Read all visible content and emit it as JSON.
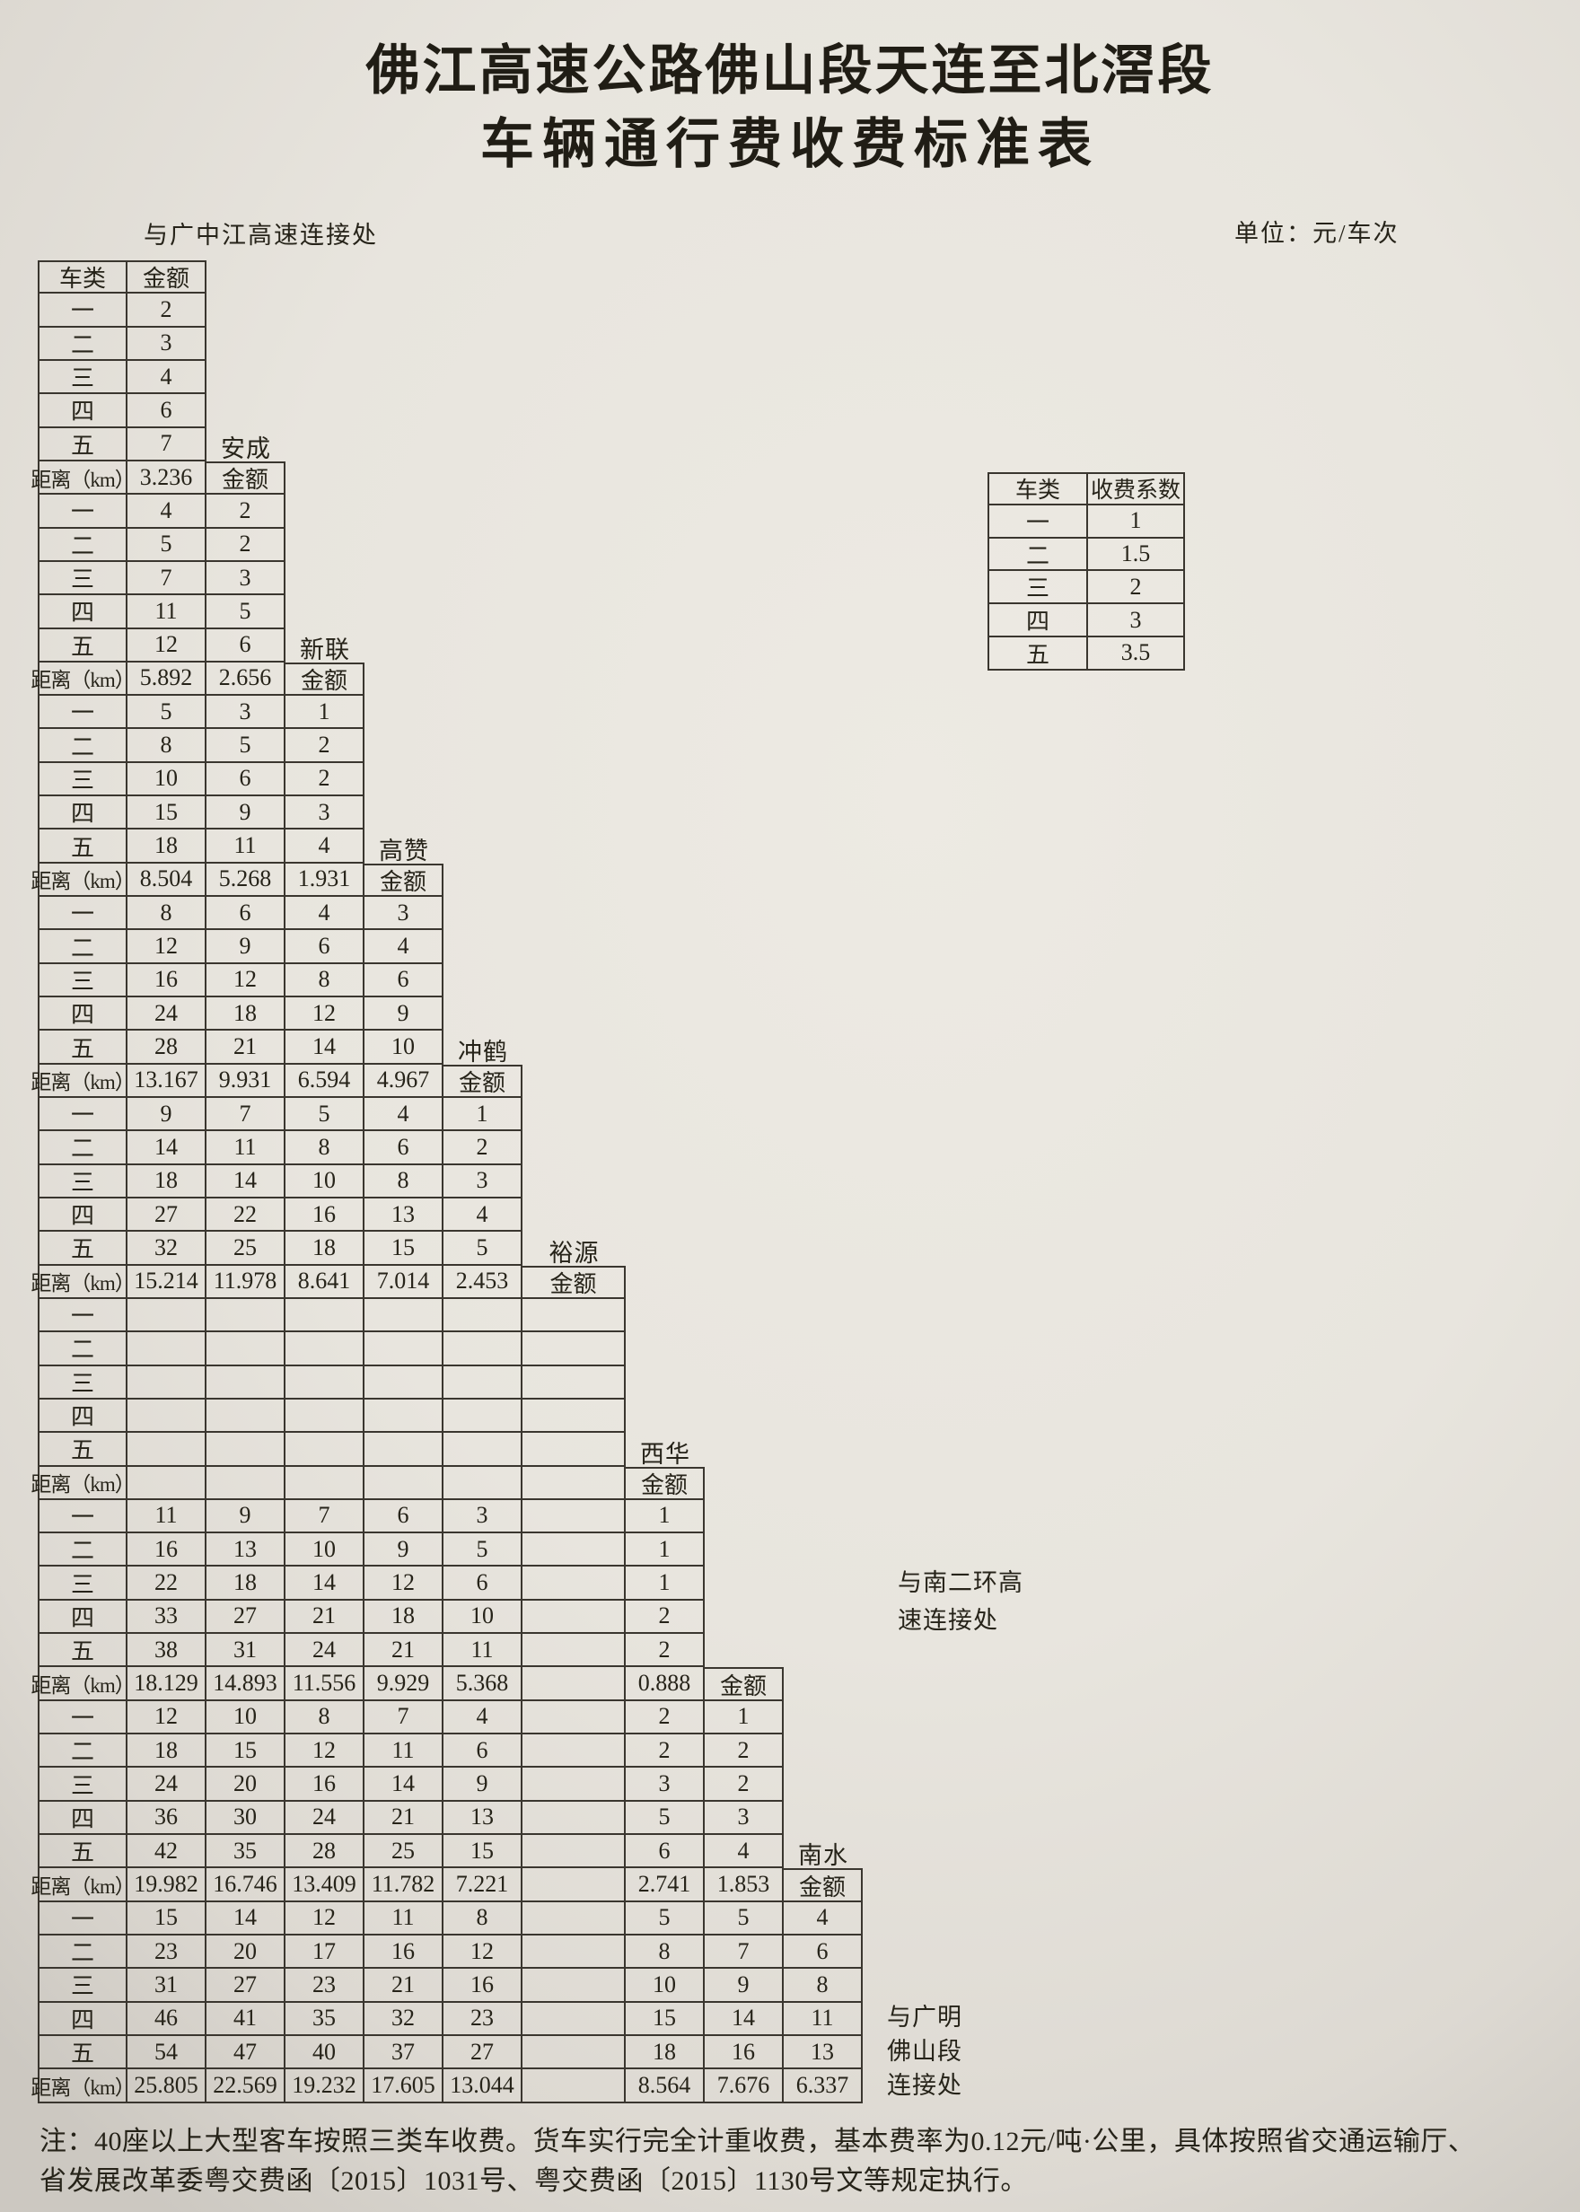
{
  "page": {
    "title_line1": "佛江高速公路佛山段天连至北滘段",
    "title_line2": "车辆通行费收费标准表",
    "unit_label": "单位：元/车次",
    "top_left_label": "与广中江高速连接处",
    "note_line1": "注：40座以上大型客车按照三类车收费。货车实行完全计重收费，基本费率为0.12元/吨·公里，具体按照省交通运输厅、",
    "note_line2": "省发展改革委粤交费函〔2015〕1031号、粤交费函〔2015〕1130号文等规定执行。"
  },
  "fee_table": {
    "corner_header": "车类",
    "amount_header": "金额",
    "distance_row_label": "距离（km）",
    "vehicle_classes": [
      "一",
      "二",
      "三",
      "四",
      "五"
    ],
    "first_block_values": [
      "2",
      "3",
      "4",
      "6",
      "7"
    ],
    "blocks": [
      {
        "station": "安成",
        "distances": [
          "3.236"
        ],
        "rows": [
          [
            "4",
            "2"
          ],
          [
            "5",
            "2"
          ],
          [
            "7",
            "3"
          ],
          [
            "11",
            "5"
          ],
          [
            "12",
            "6"
          ]
        ]
      },
      {
        "station": "新联",
        "distances": [
          "5.892",
          "2.656"
        ],
        "rows": [
          [
            "5",
            "3",
            "1"
          ],
          [
            "8",
            "5",
            "2"
          ],
          [
            "10",
            "6",
            "2"
          ],
          [
            "15",
            "9",
            "3"
          ],
          [
            "18",
            "11",
            "4"
          ]
        ]
      },
      {
        "station": "高赞",
        "distances": [
          "8.504",
          "5.268",
          "1.931"
        ],
        "rows": [
          [
            "8",
            "6",
            "4",
            "3"
          ],
          [
            "12",
            "9",
            "6",
            "4"
          ],
          [
            "16",
            "12",
            "8",
            "6"
          ],
          [
            "24",
            "18",
            "12",
            "9"
          ],
          [
            "28",
            "21",
            "14",
            "10"
          ]
        ]
      },
      {
        "station": "冲鹤",
        "distances": [
          "13.167",
          "9.931",
          "6.594",
          "4.967"
        ],
        "rows": [
          [
            "9",
            "7",
            "5",
            "4",
            "1"
          ],
          [
            "14",
            "11",
            "8",
            "6",
            "2"
          ],
          [
            "18",
            "14",
            "10",
            "8",
            "3"
          ],
          [
            "27",
            "22",
            "16",
            "13",
            "4"
          ],
          [
            "32",
            "25",
            "18",
            "15",
            "5"
          ]
        ]
      },
      {
        "station": "裕源",
        "distances": [
          "15.214",
          "11.978",
          "8.641",
          "7.014",
          "2.453"
        ],
        "rows": [
          [
            "",
            "",
            "",
            "",
            "",
            ""
          ],
          [
            "",
            "",
            "",
            "",
            "",
            ""
          ],
          [
            "",
            "",
            "",
            "",
            "",
            ""
          ],
          [
            "",
            "",
            "",
            "",
            "",
            ""
          ],
          [
            "",
            "",
            "",
            "",
            "",
            ""
          ]
        ]
      },
      {
        "station": "西华",
        "distances": [
          "",
          "",
          "",
          "",
          "",
          ""
        ],
        "rows": [
          [
            "11",
            "9",
            "7",
            "6",
            "3",
            "",
            "1"
          ],
          [
            "16",
            "13",
            "10",
            "9",
            "5",
            "",
            "1"
          ],
          [
            "22",
            "18",
            "14",
            "12",
            "6",
            "",
            "1"
          ],
          [
            "33",
            "27",
            "21",
            "18",
            "10",
            "",
            "2"
          ],
          [
            "38",
            "31",
            "24",
            "21",
            "11",
            "",
            "2"
          ]
        ]
      },
      {
        "station": "",
        "distances": [
          "18.129",
          "14.893",
          "11.556",
          "9.929",
          "5.368",
          "",
          "0.888"
        ],
        "rows": [
          [
            "12",
            "10",
            "8",
            "7",
            "4",
            "",
            "2",
            "1"
          ],
          [
            "18",
            "15",
            "12",
            "11",
            "6",
            "",
            "2",
            "2"
          ],
          [
            "24",
            "20",
            "16",
            "14",
            "9",
            "",
            "3",
            "2"
          ],
          [
            "36",
            "30",
            "24",
            "21",
            "13",
            "",
            "5",
            "3"
          ],
          [
            "42",
            "35",
            "28",
            "25",
            "15",
            "",
            "6",
            "4"
          ]
        ]
      },
      {
        "station": "南水",
        "distances": [
          "19.982",
          "16.746",
          "13.409",
          "11.782",
          "7.221",
          "",
          "2.741",
          "1.853"
        ],
        "rows": [
          [
            "15",
            "14",
            "12",
            "11",
            "8",
            "",
            "5",
            "5",
            "4"
          ],
          [
            "23",
            "20",
            "17",
            "16",
            "12",
            "",
            "8",
            "7",
            "6"
          ],
          [
            "31",
            "27",
            "23",
            "21",
            "16",
            "",
            "10",
            "9",
            "8"
          ],
          [
            "46",
            "41",
            "35",
            "32",
            "23",
            "",
            "15",
            "14",
            "11"
          ],
          [
            "54",
            "47",
            "40",
            "37",
            "27",
            "",
            "18",
            "16",
            "13"
          ]
        ]
      }
    ],
    "final_distances": [
      "25.805",
      "22.569",
      "19.232",
      "17.605",
      "13.044",
      "",
      "8.564",
      "7.676",
      "6.337"
    ]
  },
  "side_labels": {
    "south_ring": [
      "与南二环高",
      "速连接处"
    ],
    "guangming": [
      "与广明",
      "佛山段",
      "连接处"
    ]
  },
  "coefficient_table": {
    "headers": [
      "车类",
      "收费系数"
    ],
    "rows": [
      [
        "一",
        "1"
      ],
      [
        "二",
        "1.5"
      ],
      [
        "三",
        "2"
      ],
      [
        "四",
        "3"
      ],
      [
        "五",
        "3.5"
      ]
    ]
  }
}
